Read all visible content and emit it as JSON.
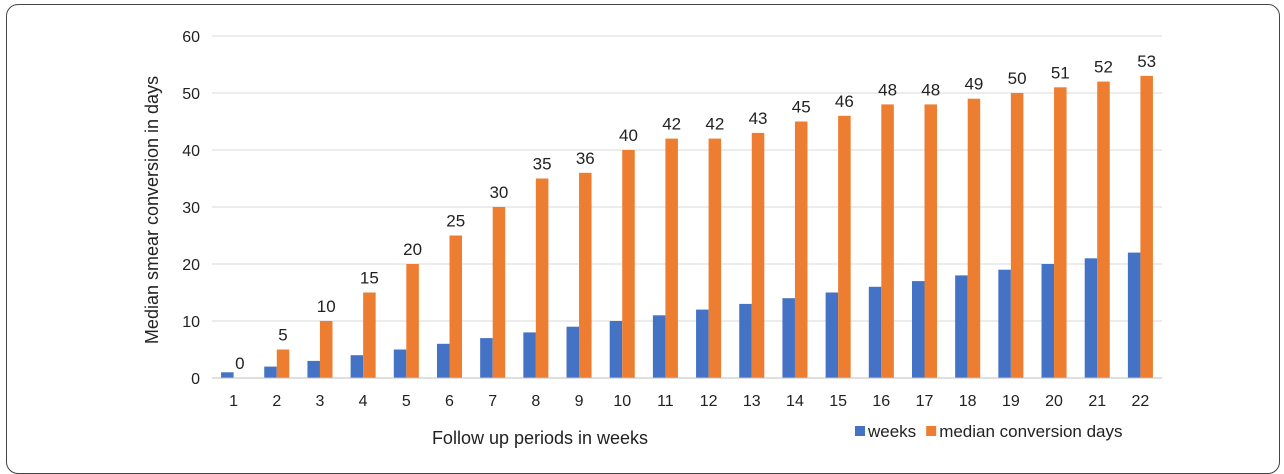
{
  "chart_data": {
    "type": "bar",
    "xlabel": "Follow up periods in weeks",
    "ylabel": "Median smear conversion in days",
    "ylim": [
      0,
      60
    ],
    "yticks": [
      0,
      10,
      20,
      30,
      40,
      50,
      60
    ],
    "grid": true,
    "legend_position": "bottom-right",
    "categories": [
      "1",
      "2",
      "3",
      "4",
      "5",
      "6",
      "7",
      "8",
      "9",
      "10",
      "11",
      "12",
      "13",
      "14",
      "15",
      "16",
      "17",
      "18",
      "19",
      "20",
      "21",
      "22"
    ],
    "series": [
      {
        "name": "weeks",
        "color": "#4472C4",
        "values": [
          1,
          2,
          3,
          4,
          5,
          6,
          7,
          8,
          9,
          10,
          11,
          12,
          13,
          14,
          15,
          16,
          17,
          18,
          19,
          20,
          21,
          22
        ]
      },
      {
        "name": "median conversion days",
        "color": "#ED7D31",
        "values": [
          0,
          5,
          10,
          15,
          20,
          25,
          30,
          35,
          36,
          40,
          42,
          42,
          43,
          45,
          46,
          48,
          48,
          49,
          50,
          51,
          52,
          53
        ],
        "data_labels": true
      }
    ]
  }
}
